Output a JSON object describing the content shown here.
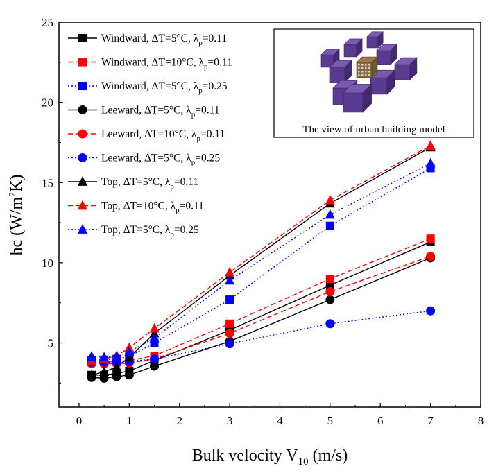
{
  "chart_data": {
    "type": "line",
    "title": "",
    "xlabel": {
      "main": "Bulk velocity V",
      "sub": "10",
      "unit": " (m/s)"
    },
    "ylabel": {
      "pre": "hc (W/m",
      "sup": "2",
      "post": "K)"
    },
    "xlim": [
      -0.4,
      8
    ],
    "ylim": [
      1,
      25
    ],
    "xticks": [
      0,
      1,
      2,
      3,
      4,
      5,
      6,
      7,
      8
    ],
    "yticks": [
      5,
      10,
      15,
      20,
      25
    ],
    "grid": false,
    "legend_position": "top-left",
    "x": [
      0.25,
      0.5,
      0.75,
      1.0,
      1.5,
      3.0,
      5.0,
      7.0
    ],
    "series": [
      {
        "name": {
          "pre": "Windward, ΔT=5°C, λ",
          "sub": "p",
          "post": "=0.11"
        },
        "color": "#000000",
        "dash": "solid",
        "marker": "square",
        "values": [
          3.0,
          3.0,
          3.1,
          3.25,
          3.9,
          5.8,
          8.6,
          11.3
        ]
      },
      {
        "name": {
          "pre": "Windward, ΔT=10°C, λ",
          "sub": "p",
          "post": "=0.11"
        },
        "color": "#ff0000",
        "dash": "dashed",
        "marker": "square",
        "values": [
          3.8,
          3.8,
          3.85,
          3.9,
          4.2,
          6.2,
          9.0,
          11.5
        ]
      },
      {
        "name": {
          "pre": "Windward, ΔT=5°C, λ",
          "sub": "p",
          "post": "=0.25"
        },
        "color": "#0000ff",
        "dash": "dotted",
        "marker": "square",
        "values": [
          3.9,
          3.95,
          4.0,
          4.15,
          5.0,
          7.7,
          12.3,
          15.9
        ]
      },
      {
        "name": {
          "pre": "Leeward, ΔT=5°C, λ",
          "sub": "p",
          "post": "=0.11"
        },
        "color": "#000000",
        "dash": "solid",
        "marker": "circle",
        "values": [
          2.85,
          2.8,
          2.9,
          3.0,
          3.55,
          5.1,
          7.7,
          10.3
        ]
      },
      {
        "name": {
          "pre": "Leeward, ΔT=10°C, λ",
          "sub": "p",
          "post": "=0.11"
        },
        "color": "#ff0000",
        "dash": "dashed",
        "marker": "circle",
        "values": [
          3.7,
          3.7,
          3.7,
          3.75,
          4.0,
          5.6,
          8.2,
          10.4
        ]
      },
      {
        "name": {
          "pre": "Leeward, ΔT=5°C, λ",
          "sub": "p",
          "post": "=0.25"
        },
        "color": "#0000ff",
        "dash": "dotted",
        "marker": "circle",
        "values": [
          3.8,
          3.8,
          3.8,
          3.85,
          4.0,
          4.95,
          6.2,
          7.0
        ]
      },
      {
        "name": {
          "pre": "Top, ΔT=5°C, λ",
          "sub": "p",
          "post": "=0.11"
        },
        "color": "#000000",
        "dash": "solid",
        "marker": "triangle",
        "values": [
          3.0,
          3.2,
          3.5,
          4.1,
          5.6,
          9.2,
          13.7,
          17.2
        ]
      },
      {
        "name": {
          "pre": "Top, ΔT=10°C, λ",
          "sub": "p",
          "post": "=0.11"
        },
        "color": "#ff0000",
        "dash": "dashed",
        "marker": "triangle",
        "values": [
          3.9,
          4.0,
          4.2,
          4.7,
          5.9,
          9.4,
          13.9,
          17.3
        ]
      },
      {
        "name": {
          "pre": "Top, ΔT=5°C, λ",
          "sub": "p",
          "post": "=0.25"
        },
        "color": "#0000ff",
        "dash": "dotted",
        "marker": "triangle",
        "values": [
          4.15,
          4.1,
          4.15,
          4.45,
          5.3,
          8.9,
          13.0,
          16.2
        ]
      }
    ],
    "inset": {
      "caption": "The view of urban building model",
      "block_color": "#5b3b8f",
      "center_block_color": "#8a6a3a"
    }
  }
}
